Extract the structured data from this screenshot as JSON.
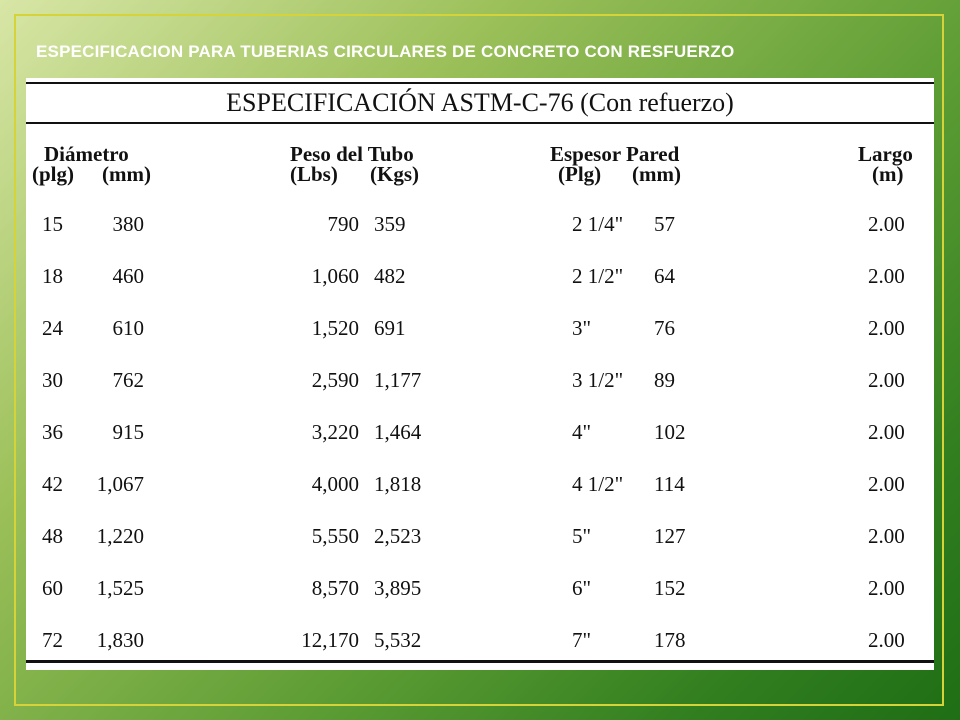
{
  "slide": {
    "title": "ESPECIFICACION PARA TUBERIAS CIRCULARES DE CONCRETO CON RESFUERZO"
  },
  "table": {
    "title": "ESPECIFICACIÓN ASTM-C-76 (Con refuerzo)",
    "headers": {
      "diametro": "Diámetro",
      "diametro_plg": "(plg)",
      "diametro_mm": "(mm)",
      "peso": "Peso del Tubo",
      "peso_lbs": "(Lbs)",
      "peso_kgs": "(Kgs)",
      "espesor": "Espesor Pared",
      "espesor_plg": "(Plg)",
      "espesor_mm": "(mm)",
      "largo": "Largo",
      "largo_m": "(m)"
    },
    "rows": [
      {
        "plg": "15",
        "mm": "380",
        "lbs": "790",
        "kgs": "359",
        "esp_plg": "2 1/4\"",
        "esp_mm": "57",
        "largo": "2.00"
      },
      {
        "plg": "18",
        "mm": "460",
        "lbs": "1,060",
        "kgs": "482",
        "esp_plg": "2 1/2\"",
        "esp_mm": "64",
        "largo": "2.00"
      },
      {
        "plg": "24",
        "mm": "610",
        "lbs": "1,520",
        "kgs": "691",
        "esp_plg": "3\"",
        "esp_mm": "76",
        "largo": "2.00"
      },
      {
        "plg": "30",
        "mm": "762",
        "lbs": "2,590",
        "kgs": "1,177",
        "esp_plg": "3 1/2\"",
        "esp_mm": "89",
        "largo": "2.00"
      },
      {
        "plg": "36",
        "mm": "915",
        "lbs": "3,220",
        "kgs": "1,464",
        "esp_plg": "4\"",
        "esp_mm": "102",
        "largo": "2.00"
      },
      {
        "plg": "42",
        "mm": "1,067",
        "lbs": "4,000",
        "kgs": "1,818",
        "esp_plg": "4 1/2\"",
        "esp_mm": "114",
        "largo": "2.00"
      },
      {
        "plg": "48",
        "mm": "1,220",
        "lbs": "5,550",
        "kgs": "2,523",
        "esp_plg": "5\"",
        "esp_mm": "127",
        "largo": "2.00"
      },
      {
        "plg": "60",
        "mm": "1,525",
        "lbs": "8,570",
        "kgs": "3,895",
        "esp_plg": "6\"",
        "esp_mm": "152",
        "largo": "2.00"
      },
      {
        "plg": "72",
        "mm": "1,830",
        "lbs": "12,170",
        "kgs": "5,532",
        "esp_plg": "7\"",
        "esp_mm": "178",
        "largo": "2.00"
      }
    ]
  }
}
